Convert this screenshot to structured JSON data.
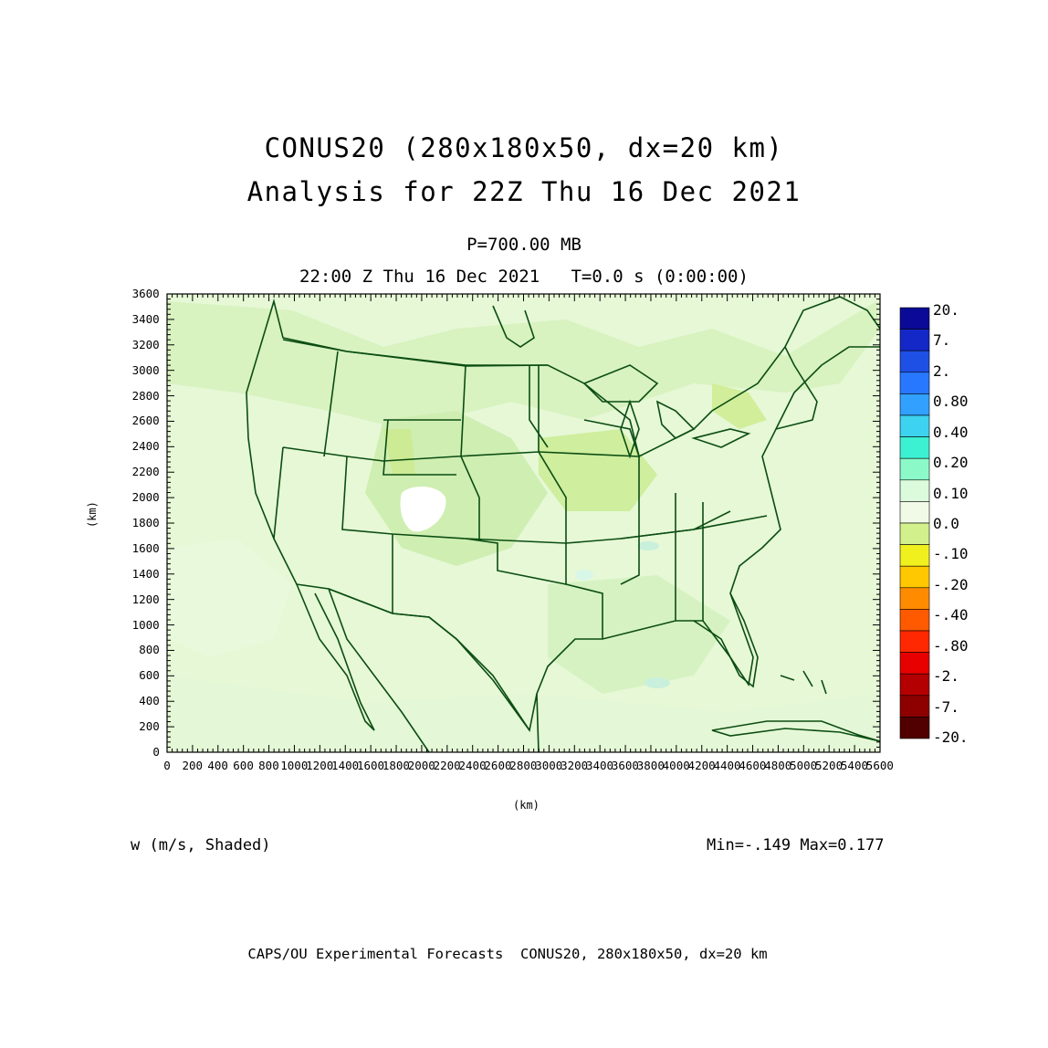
{
  "titles": {
    "line1": "CONUS20 (280x180x50, dx=20 km)",
    "line2": "Analysis for 22Z Thu 16 Dec 2021",
    "level": "P=700.00 MB",
    "time": "22:00 Z Thu 16 Dec 2021   T=0.0 s (0:00:00)"
  },
  "axes": {
    "xlabel": "(km)",
    "ylabel": "(km)",
    "xticks": [
      "0",
      "200",
      "400",
      "600",
      "800",
      "1000",
      "1200",
      "1400",
      "1600",
      "1800",
      "2000",
      "2200",
      "2400",
      "2600",
      "2800",
      "3000",
      "3200",
      "3400",
      "3600",
      "3800",
      "4000",
      "4200",
      "4400",
      "4600",
      "4800",
      "5000",
      "5200",
      "5400",
      "5600"
    ],
    "yticks": [
      "0",
      "200",
      "400",
      "600",
      "800",
      "1000",
      "1200",
      "1400",
      "1600",
      "1800",
      "2000",
      "2200",
      "2400",
      "2600",
      "2800",
      "3000",
      "3200",
      "3400",
      "3600"
    ]
  },
  "colorbar": {
    "labels": [
      "20.",
      "7.",
      "2.",
      "0.80",
      "0.40",
      "0.20",
      "0.10",
      "0.0",
      "-.10",
      "-.20",
      "-.40",
      "-.80",
      "-2.",
      "-7.",
      "-20."
    ],
    "colors": [
      "#0a0a96",
      "#1428c8",
      "#1e50e6",
      "#2878ff",
      "#32a0ff",
      "#3cd2f0",
      "#3cf0d2",
      "#8cfac8",
      "#dcfadc",
      "#f0fae6",
      "#d2f08c",
      "#f0f01e",
      "#ffc800",
      "#ff8c00",
      "#ff5a00",
      "#ff2800",
      "#e60000",
      "#b40000",
      "#8c0000",
      "#500000"
    ]
  },
  "field": {
    "variable": "w (m/s, Shaded)",
    "stats": "Min=-.149 Max=0.177"
  },
  "footer": "CAPS/OU Experimental Forecasts  CONUS20, 280x180x50, dx=20 km"
}
